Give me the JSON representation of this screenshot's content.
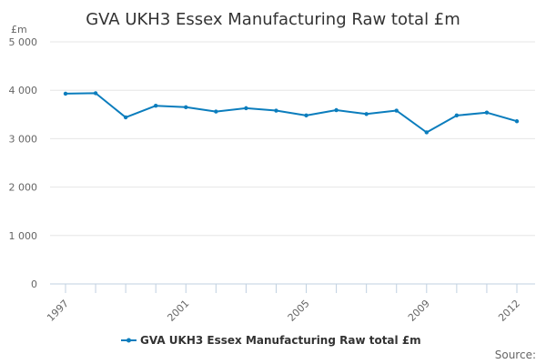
{
  "chart_data": {
    "type": "line",
    "title": "GVA UKH3 Essex Manufacturing Raw total £m",
    "ylabel": "£m",
    "xlabel": "",
    "x": [
      1997,
      1998,
      1999,
      2000,
      2001,
      2002,
      2003,
      2004,
      2005,
      2006,
      2007,
      2008,
      2009,
      2010,
      2011,
      2012
    ],
    "x_tick_labels": [
      "1997",
      "2001",
      "2005",
      "2009",
      "2012"
    ],
    "x_tick_values": [
      1997,
      2001,
      2005,
      2009,
      2012
    ],
    "ylim": [
      0,
      5000
    ],
    "y_ticks": [
      0,
      1000,
      2000,
      3000,
      4000,
      5000
    ],
    "y_tick_labels": [
      "0",
      "1 000",
      "2 000",
      "3 000",
      "4 000",
      "5 000"
    ],
    "grid": true,
    "legend_position": "bottom",
    "series": [
      {
        "name": "GVA UKH3 Essex Manufacturing Raw total £m",
        "color": "#0b7dbd",
        "values": [
          3930,
          3940,
          3440,
          3680,
          3650,
          3560,
          3630,
          3580,
          3480,
          3590,
          3510,
          3580,
          3130,
          3480,
          3540,
          3360
        ]
      }
    ]
  },
  "footer": {
    "source_label": "Source:"
  }
}
